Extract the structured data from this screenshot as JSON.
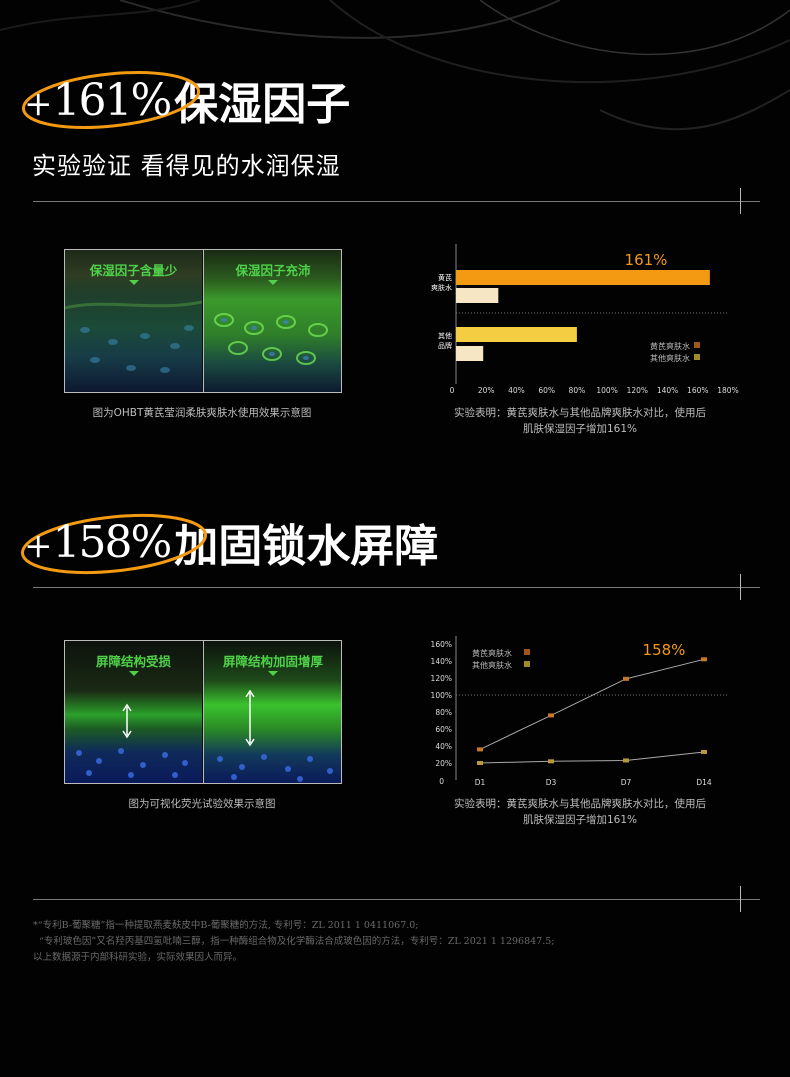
{
  "section1": {
    "percent": "161%",
    "plus": "+",
    "title": "保湿因子",
    "subtitle": "实验验证  看得见的水润保湿",
    "micro": {
      "left_label": "保湿因子含量少",
      "right_label": "保湿因子充沛",
      "caption": "图为OHBT黄芪莹润柔肤爽肤水使用效果示意图"
    },
    "note_line1": "实验表明：黄芪爽肤水与其他品牌爽肤水对比，使用后",
    "note_line2": "肌肤保湿因子增加161%"
  },
  "section2": {
    "percent": "158%",
    "plus": "+",
    "title": "加固锁水屏障",
    "micro": {
      "left_label": "屏障结构受损",
      "right_label": "屏障结构加固增厚",
      "caption": "图为可视化荧光试验效果示意图"
    },
    "note_line1": "实验表明：黄芪爽肤水与其他品牌爽肤水对比，使用后",
    "note_line2": "肌肤保湿因子增加161%"
  },
  "footnote": {
    "line1": "*“专利B-葡聚糖”指一种提取燕麦麸皮中B-葡聚糖的方法,  专利号：ZL 2011 1 0411067.0;",
    "line2": "“专利玻色因”又名羟丙基四氢吡喃三醇，指一种酶组合物及化学酶法合成玻色因的方法，专利号：ZL 2021 1 1296847.5;",
    "line3": "以上数据源于内部科研实验，实际效果因人而异。"
  },
  "colors": {
    "orange": "#f39a12",
    "yellow": "#f5cd42",
    "cream": "#f7e6c4",
    "green": "#4fd14a",
    "background": "#020202"
  },
  "chart_data": [
    {
      "type": "bar",
      "orientation": "horizontal",
      "categories": [
        "黄芪\n爽肤水",
        "其他\n品牌"
      ],
      "category_labels": [
        [
          "黄芪",
          "爽肤水"
        ],
        [
          "其他",
          "品牌"
        ]
      ],
      "series": [
        {
          "name": "黄芪爽肤水",
          "values": [
            168,
            80
          ],
          "colors": [
            "#f39a12",
            "#f5cd42"
          ]
        },
        {
          "name": "其他爽肤水",
          "values": [
            28,
            18
          ],
          "colors": [
            "#f7e6c4",
            "#f7e6c4"
          ]
        }
      ],
      "annotation": "161%",
      "xlim": [
        0,
        180
      ],
      "xticks": [
        "0",
        "20%",
        "40%",
        "60%",
        "80%",
        "100%",
        "120%",
        "140%",
        "160%",
        "180%"
      ],
      "legend": [
        "黄芪爽肤水",
        "其他爽肤水"
      ],
      "legend_colors": [
        "#a0561a",
        "#a08a2a"
      ],
      "legend_position": "right"
    },
    {
      "type": "line",
      "x": [
        "D1",
        "D3",
        "D7",
        "D14"
      ],
      "series": [
        {
          "name": "黄芪爽肤水",
          "values": [
            36,
            76,
            119,
            142
          ]
        },
        {
          "name": "其他爽肤水",
          "values": [
            20,
            22,
            23,
            33
          ]
        }
      ],
      "annotation": "158%",
      "ylim": [
        0,
        160
      ],
      "yticks": [
        "0",
        "20%",
        "40%",
        "60%",
        "80%",
        "100%",
        "120%",
        "140%",
        "160%"
      ],
      "reference_line": 100,
      "legend": [
        "黄芪爽肤水",
        "其他爽肤水"
      ],
      "legend_colors": [
        "#a0561a",
        "#a08a2a"
      ],
      "legend_position": "top-left"
    }
  ]
}
